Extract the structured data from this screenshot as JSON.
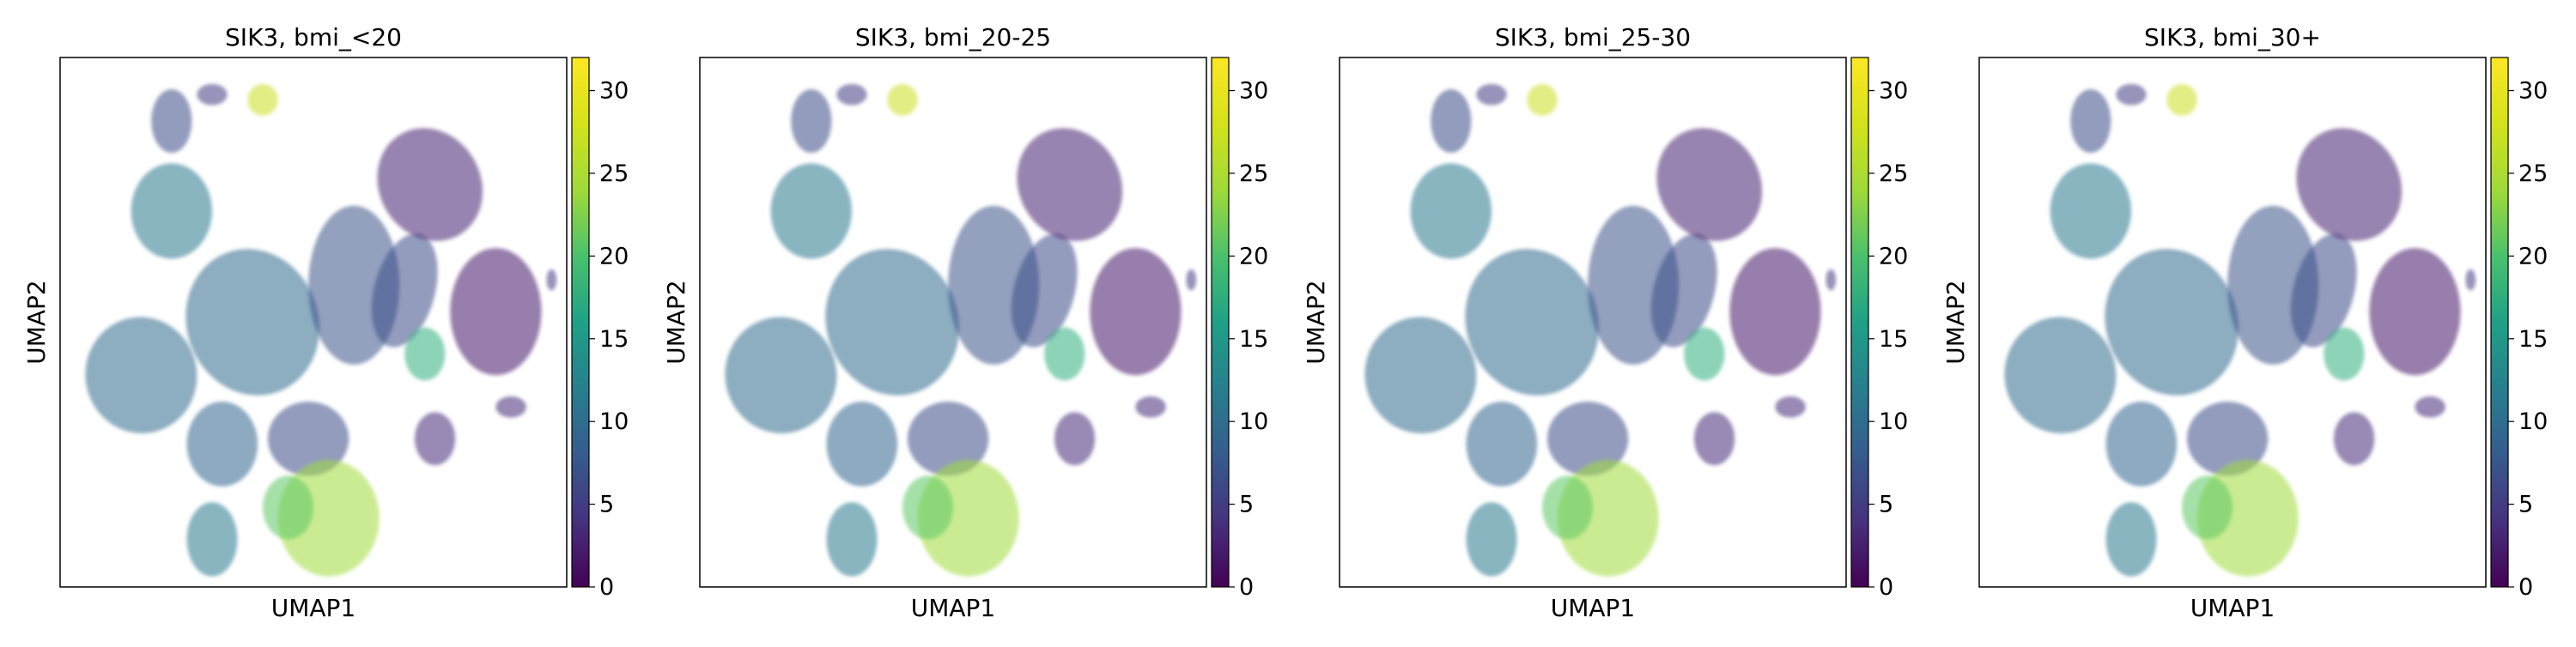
{
  "chart_data": [
    {
      "type": "scatter",
      "title": "SIK3, bmi_<20",
      "xlabel": "UMAP1",
      "ylabel": "UMAP2",
      "colorbar": {
        "ticks": [
          "0",
          "5",
          "10",
          "15",
          "20",
          "25",
          "30"
        ],
        "min": 0,
        "max": 32,
        "colormap": "viridis"
      }
    },
    {
      "type": "scatter",
      "title": "SIK3, bmi_20-25",
      "xlabel": "UMAP1",
      "ylabel": "UMAP2",
      "colorbar": {
        "ticks": [
          "0",
          "5",
          "10",
          "15",
          "20",
          "25",
          "30"
        ],
        "min": 0,
        "max": 32,
        "colormap": "viridis"
      }
    },
    {
      "type": "scatter",
      "title": "SIK3, bmi_25-30",
      "xlabel": "UMAP1",
      "ylabel": "UMAP2",
      "colorbar": {
        "ticks": [
          "0",
          "5",
          "10",
          "15",
          "20",
          "25",
          "30"
        ],
        "min": 0,
        "max": 32,
        "colormap": "viridis"
      }
    },
    {
      "type": "scatter",
      "title": "SIK3, bmi_30+",
      "xlabel": "UMAP1",
      "ylabel": "UMAP2",
      "colorbar": {
        "ticks": [
          "0",
          "5",
          "10",
          "15",
          "20",
          "25",
          "30"
        ],
        "min": 0,
        "max": 32,
        "colormap": "viridis"
      }
    }
  ],
  "colors": {
    "viridis_low": "#440154",
    "viridis_mid": "#21918c",
    "viridis_high": "#fde725",
    "frame": "#000000"
  }
}
